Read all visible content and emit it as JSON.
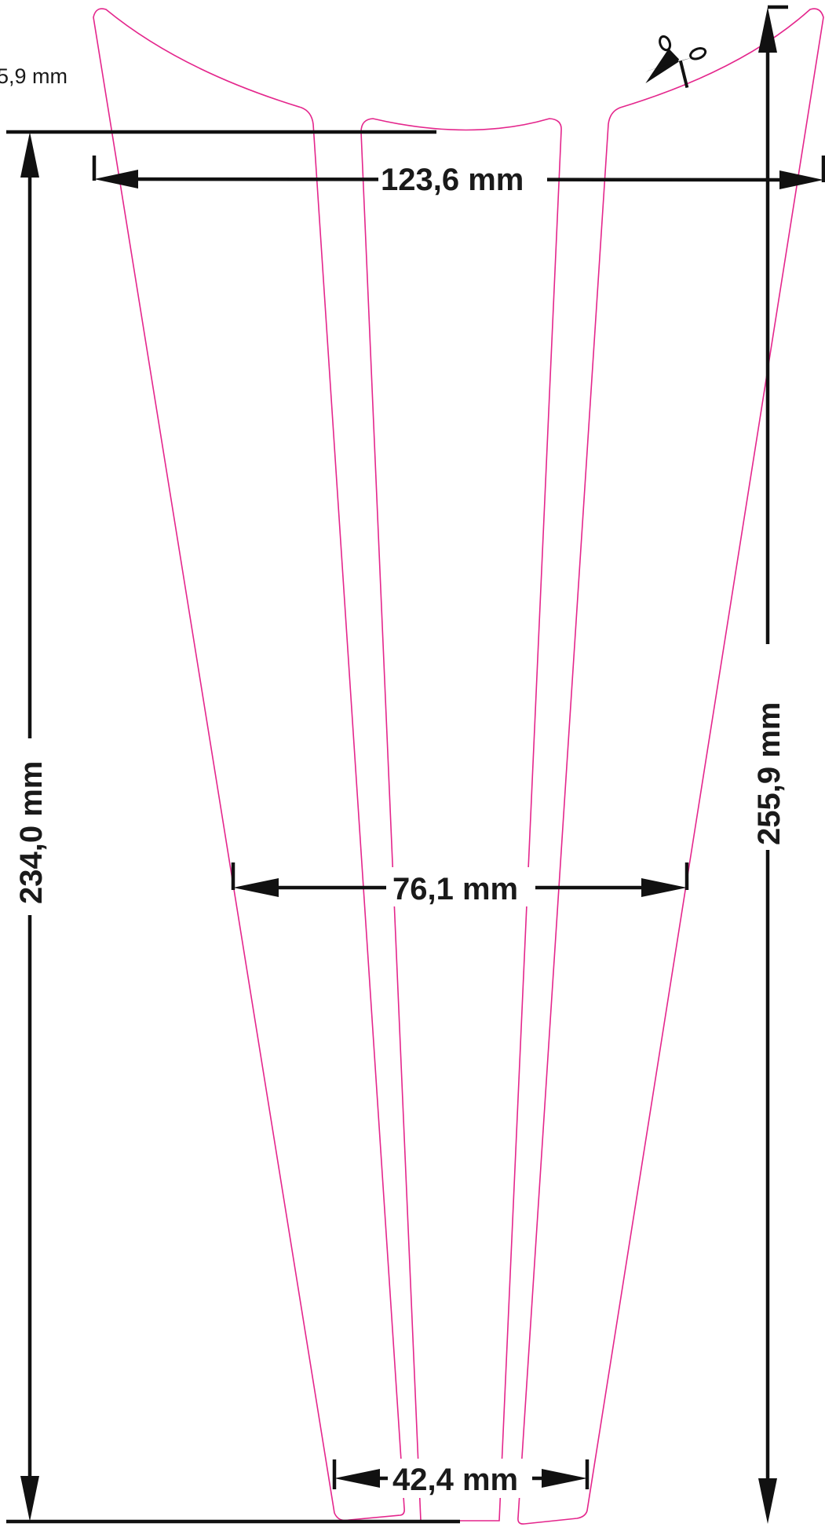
{
  "template": {
    "dimensions": {
      "top_width": "123,6 mm",
      "middle_width": "76,1 mm",
      "bottom_width": "42,4 mm",
      "height_left": "234,0 mm",
      "height_right": "255,9 mm",
      "partial_label": "5,9 mm"
    },
    "icons": {
      "cut_mark": "scissors-icon"
    },
    "colors": {
      "cut_line": "#e4268c",
      "dimension_line": "#111111"
    }
  }
}
